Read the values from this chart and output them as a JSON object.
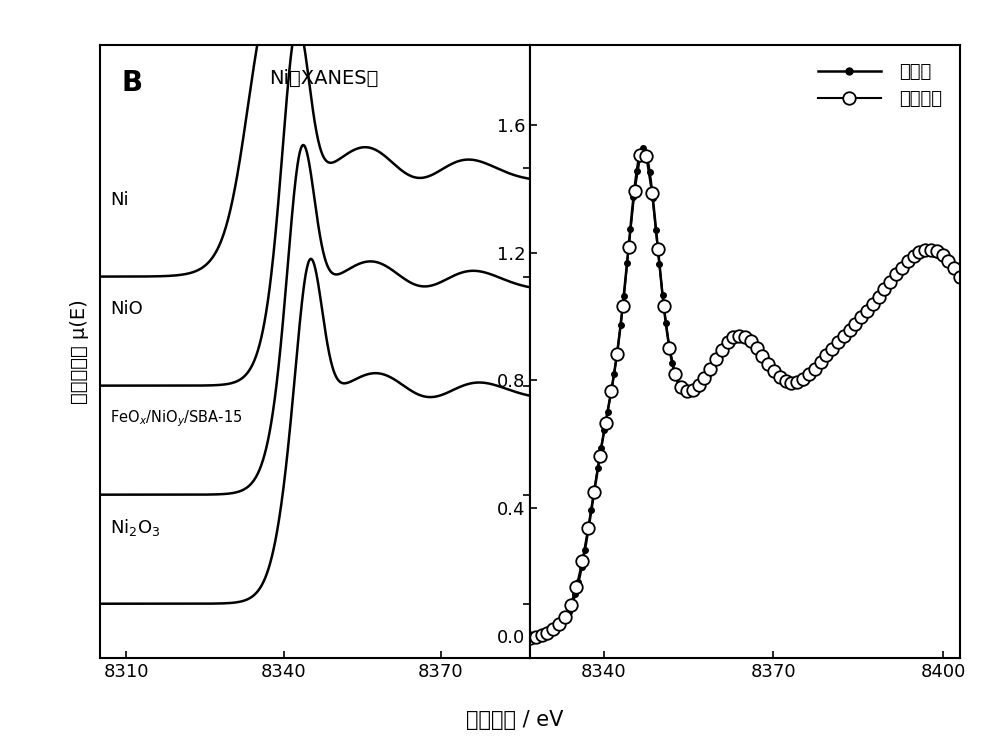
{
  "title_left": "Ni的XANES谱",
  "panel_label": "B",
  "ylabel": "归一化吸收 μ(E)",
  "xlabel": "光子能量 / eV",
  "left_xlim": [
    8305,
    8387
  ],
  "left_ylim": [
    -0.2,
    2.05
  ],
  "right_xlim": [
    8327,
    8403
  ],
  "right_ylim": [
    -0.07,
    1.85
  ],
  "yticks": [
    0.0,
    0.4,
    0.8,
    1.2,
    1.6
  ],
  "left_xticks": [
    8310,
    8340,
    8370
  ],
  "right_xticks": [
    8340,
    8370,
    8400
  ],
  "legend_entries": [
    "本发明",
    "拟合曲线"
  ],
  "background_color": "#ffffff",
  "line_color": "#000000",
  "offsets": [
    1.2,
    0.8,
    0.4,
    0.0
  ]
}
